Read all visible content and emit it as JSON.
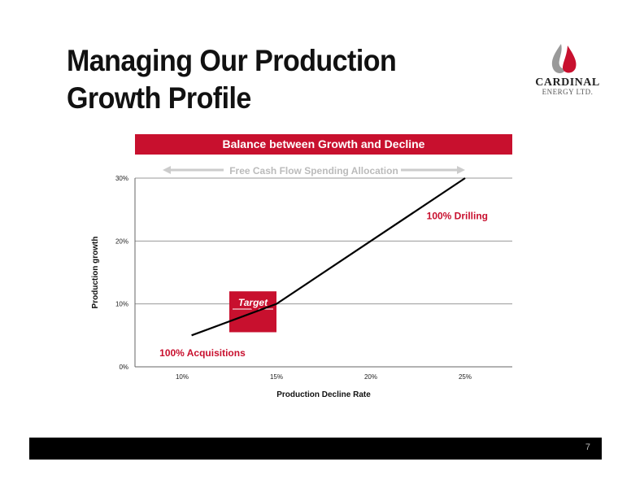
{
  "title_lines": [
    "Managing Our Production",
    "Growth Profile"
  ],
  "logo": {
    "name": "CARDINAL",
    "sub": "ENERGY LTD.",
    "icon": "flame-drop-icon"
  },
  "banner": "Balance between Growth and Decline",
  "arrow_label": "Free Cash Flow Spending Allocation",
  "page_number": "7",
  "colors": {
    "accent": "#c8102e",
    "line": "#000000",
    "arrow": "#cccccc"
  },
  "chart_data": {
    "type": "line",
    "x": [
      10.5,
      15,
      20,
      25
    ],
    "y": [
      5,
      10,
      20,
      30
    ],
    "x_ticks": [
      10,
      15,
      20,
      25
    ],
    "x_tick_labels": [
      "10%",
      "15%",
      "20%",
      "25%"
    ],
    "y_ticks": [
      0,
      10,
      20,
      30
    ],
    "y_tick_labels": [
      "0%",
      "10%",
      "20%",
      "30%"
    ],
    "xlim": [
      7.5,
      27.5
    ],
    "ylim": [
      0,
      30
    ],
    "xlabel": "Production Decline Rate",
    "ylabel": "Production growth",
    "grid": "horizontal",
    "target_box": {
      "x": [
        12.5,
        15
      ],
      "y": [
        5.5,
        12
      ],
      "label": "Target"
    },
    "annotations": [
      {
        "text": "100% Drilling",
        "x": 25,
        "y": 23.5
      },
      {
        "text": "100% Acquisitions",
        "x": 8.8,
        "y": 1.7
      }
    ]
  }
}
